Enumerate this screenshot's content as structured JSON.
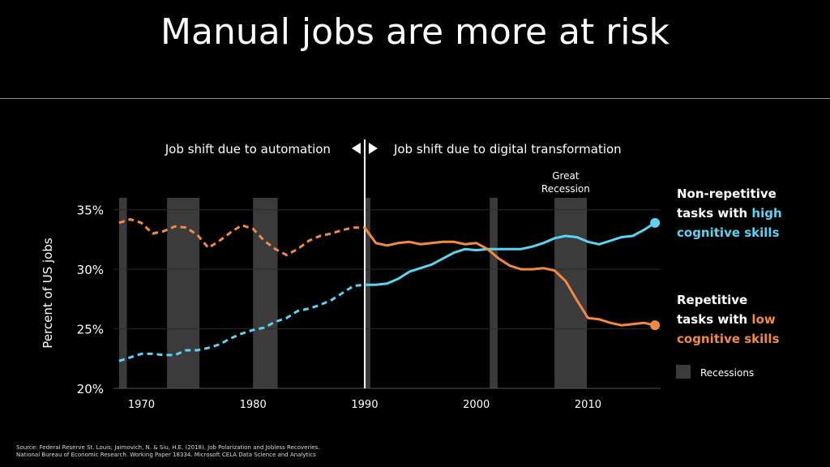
{
  "title": "Manual jobs are more at risk",
  "source_line1": "Source: Federal Reserve St. Louis; Jaimovich, N. & Siu, H.E. (2018). Job Polarization and Jobless Recoveries.",
  "source_line2": "National Bureau of Economic Research. Working Paper 18334.  Microsoft CELA Data Science and Analytics",
  "colors": {
    "high": "#5bd3f2",
    "low": "#f28a44",
    "recession": "#3b3b3b",
    "background": "#000000"
  },
  "chart_data": {
    "type": "line",
    "ylabel": "Percent of US jobs",
    "xlim": [
      1967.5,
      2016.5
    ],
    "ylim": [
      20,
      36
    ],
    "yticks": [
      20,
      25,
      30,
      35
    ],
    "ytick_labels": [
      "20%",
      "25%",
      "30%",
      "35%"
    ],
    "xticks": [
      1970,
      1980,
      1990,
      2000,
      2010
    ],
    "xtick_labels": [
      "1970",
      "1980",
      "1990",
      "2000",
      "2010"
    ],
    "divider_year": 1990,
    "phase_left_label": "Job shift due to automation",
    "phase_right_label": "Job shift due to digital transformation",
    "annotation_line1": "Great",
    "annotation_line2": "Recession",
    "annotation_year": 2008,
    "recessions": [
      {
        "start": 1968.0,
        "end": 1968.7
      },
      {
        "start": 1972.3,
        "end": 1975.2
      },
      {
        "start": 1980.0,
        "end": 1982.2
      },
      {
        "start": 1990.0,
        "end": 1990.5
      },
      {
        "start": 2001.2,
        "end": 2001.9
      },
      {
        "start": 2007.0,
        "end": 2009.9
      }
    ],
    "legend_recessions": "Recessions",
    "series": [
      {
        "name": "Non-repetitive tasks with high cognitive skills",
        "key": "high",
        "label_line1": "Non-repetitive",
        "label_line2_prefix": "tasks with ",
        "label_line2_colored": "high",
        "label_line3": "cognitive skills",
        "x": [
          1968,
          1969,
          1970,
          1971,
          1972,
          1973,
          1974,
          1975,
          1976,
          1977,
          1978,
          1979,
          1980,
          1981,
          1982,
          1983,
          1984,
          1985,
          1986,
          1987,
          1988,
          1989,
          1990,
          1991,
          1992,
          1993,
          1994,
          1995,
          1996,
          1997,
          1998,
          1999,
          2000,
          2001,
          2002,
          2003,
          2004,
          2005,
          2006,
          2007,
          2008,
          2009,
          2010,
          2011,
          2012,
          2013,
          2014,
          2015,
          2016
        ],
        "values": [
          22.3,
          22.6,
          22.9,
          22.9,
          22.8,
          22.8,
          23.2,
          23.2,
          23.4,
          23.7,
          24.2,
          24.6,
          24.9,
          25.1,
          25.6,
          25.9,
          26.5,
          26.7,
          27.0,
          27.4,
          28.0,
          28.6,
          28.7,
          28.7,
          28.8,
          29.2,
          29.8,
          30.1,
          30.4,
          30.9,
          31.4,
          31.7,
          31.6,
          31.7,
          31.7,
          31.7,
          31.7,
          31.9,
          32.2,
          32.6,
          32.8,
          32.7,
          32.3,
          32.1,
          32.4,
          32.7,
          32.8,
          33.3,
          33.9
        ],
        "dashed_until": 1990
      },
      {
        "name": "Repetitive tasks with low cognitive skills",
        "key": "low",
        "label_line1": "Repetitive",
        "label_line2_prefix": "tasks with ",
        "label_line2_colored": "low",
        "label_line3": "cognitive skills",
        "x": [
          1968,
          1969,
          1970,
          1971,
          1972,
          1973,
          1974,
          1975,
          1976,
          1977,
          1978,
          1979,
          1980,
          1981,
          1982,
          1983,
          1984,
          1985,
          1986,
          1987,
          1988,
          1989,
          1990,
          1991,
          1992,
          1993,
          1994,
          1995,
          1996,
          1997,
          1998,
          1999,
          2000,
          2001,
          2002,
          2003,
          2004,
          2005,
          2006,
          2007,
          2008,
          2009,
          2010,
          2011,
          2012,
          2013,
          2014,
          2015,
          2016
        ],
        "values": [
          33.9,
          34.2,
          33.9,
          33.0,
          33.2,
          33.6,
          33.5,
          32.9,
          31.8,
          32.4,
          33.1,
          33.7,
          33.4,
          32.4,
          31.7,
          31.2,
          31.7,
          32.4,
          32.8,
          33.0,
          33.3,
          33.5,
          33.5,
          32.2,
          32.0,
          32.2,
          32.3,
          32.1,
          32.2,
          32.3,
          32.3,
          32.1,
          32.2,
          31.7,
          30.9,
          30.3,
          30.0,
          30.0,
          30.1,
          29.9,
          29.0,
          27.4,
          25.9,
          25.8,
          25.5,
          25.3,
          25.4,
          25.5,
          25.3
        ],
        "dashed_until": 1990
      }
    ]
  }
}
